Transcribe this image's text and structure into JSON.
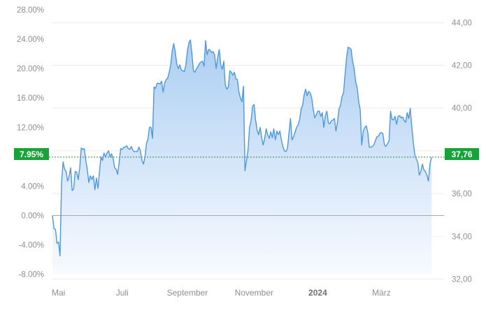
{
  "chart_data": {
    "type": "area",
    "title": "",
    "xlabel": "",
    "ylabel": "",
    "x_ticks": [
      {
        "label": "Mai",
        "bold": false,
        "index": 4
      },
      {
        "label": "Juli",
        "bold": false,
        "index": 46
      },
      {
        "label": "September",
        "bold": false,
        "index": 89
      },
      {
        "label": "November",
        "bold": false,
        "index": 133
      },
      {
        "label": "2024",
        "bold": true,
        "index": 175
      },
      {
        "label": "März",
        "bold": false,
        "index": 217
      }
    ],
    "y_left": {
      "ticks": [
        "28.00%",
        "24.00%",
        "20.00%",
        "16.00%",
        "12.00%",
        "8.00%",
        "4.00%",
        "0.00%",
        "-4.00%",
        "-8.00%"
      ],
      "values": [
        28,
        24,
        20,
        16,
        12,
        8,
        4,
        0,
        -4,
        -8
      ],
      "range": [
        -8.8,
        28
      ]
    },
    "y_right": {
      "ticks": [
        "44,00",
        "42,00",
        "40,00",
        "38,00",
        "36,00",
        "34,00",
        "32,00"
      ],
      "values": [
        44,
        42,
        40,
        38,
        36,
        34,
        32
      ],
      "range": [
        31.95,
        44.6
      ]
    },
    "current": {
      "pct_label": "7.95%",
      "price_label": "37,76",
      "pct_value": 7.95
    },
    "series": [
      {
        "unit": "percent change",
        "values": [
          0.0,
          -1.8,
          -1.9,
          -3.8,
          -3.6,
          -5.5,
          4.5,
          7.3,
          6.3,
          6.0,
          4.7,
          5.3,
          6.5,
          3.4,
          3.6,
          6.0,
          5.9,
          4.9,
          6.5,
          9.2,
          9.0,
          9.1,
          7.5,
          6.2,
          4.5,
          5.4,
          4.9,
          5.4,
          3.5,
          5.1,
          3.7,
          5.9,
          8.0,
          7.5,
          8.5,
          8.0,
          8.5,
          8.8,
          8.0,
          8.4,
          7.8,
          6.5,
          6.3,
          5.6,
          7.2,
          9.1,
          9.0,
          9.3,
          9.3,
          9.5,
          9.1,
          9.0,
          9.4,
          8.9,
          8.7,
          8.7,
          8.7,
          9.3,
          8.8,
          7.5,
          7.0,
          7.9,
          9.8,
          10.4,
          12.0,
          12.0,
          10.5,
          17.5,
          17.3,
          18.0,
          18.0,
          17.9,
          18.3,
          16.8,
          18.0,
          18.5,
          18.7,
          19.5,
          20.5,
          22.4,
          23.4,
          22.3,
          20.6,
          20.0,
          20.5,
          19.8,
          19.7,
          19.6,
          20.5,
          22.4,
          23.5,
          23.9,
          22.0,
          19.7,
          19.5,
          20.0,
          20.3,
          20.7,
          20.9,
          21.0,
          20.3,
          23.8,
          21.9,
          22.6,
          22.5,
          22.2,
          22.3,
          21.8,
          20.0,
          21.5,
          22.6,
          20.5,
          19.9,
          21.0,
          17.8,
          17.2,
          17.5,
          19.7,
          19.5,
          19.1,
          19.5,
          18.6,
          18.5,
          16.8,
          16.0,
          15.5,
          17.6,
          6.1,
          7.5,
          8.9,
          12.0,
          12.9,
          14.9,
          15.1,
          13.0,
          11.6,
          11.0,
          12.0,
          10.6,
          9.6,
          10.5,
          11.8,
          11.0,
          10.5,
          11.4,
          10.6,
          11.8,
          10.3,
          11.5,
          11.0,
          11.5,
          10.3,
          9.4,
          8.8,
          8.7,
          9.1,
          11.2,
          13.2,
          10.3,
          10.7,
          11.3,
          12.0,
          12.3,
          13.0,
          14.5,
          15.0,
          16.4,
          17.2,
          16.3,
          16.9,
          16.7,
          16.0,
          14.5,
          13.3,
          13.7,
          14.2,
          14.2,
          13.5,
          14.0,
          12.0,
          13.6,
          14.2,
          12.6,
          12.5,
          12.9,
          13.0,
          13.2,
          11.5,
          12.7,
          14.5,
          15.0,
          16.2,
          16.7,
          19.2,
          21.5,
          22.9,
          22.8,
          22.6,
          21.0,
          20.0,
          18.2,
          17.4,
          15.5,
          14.4,
          9.6,
          11.5,
          12.0,
          12.2,
          11.3,
          9.3,
          9.3,
          9.4,
          9.6,
          10.2,
          10.7,
          10.8,
          11.2,
          11.3,
          11.1,
          9.6,
          9.4,
          9.8,
          10.1,
          14.2,
          13.1,
          13.0,
          13.5,
          12.4,
          13.5,
          13.6,
          13.3,
          13.4,
          12.9,
          12.7,
          14.0,
          13.2,
          14.6,
          12.1,
          10.0,
          8.3,
          7.7,
          7.2,
          5.5,
          6.0,
          7.0,
          6.2,
          6.0,
          5.5,
          4.7,
          7.0,
          7.95
        ]
      }
    ],
    "colors": {
      "line": "#4e97e1",
      "fill_top": "#a7cbf2",
      "fill_bottom": "#f7faff",
      "grid": "#ececec",
      "zero_line": "#a6a6a6",
      "current_line": "#2e8b2e",
      "badge": "#17a338",
      "tick_text": "#8f8f8f"
    },
    "grid": true,
    "legend": "none"
  }
}
